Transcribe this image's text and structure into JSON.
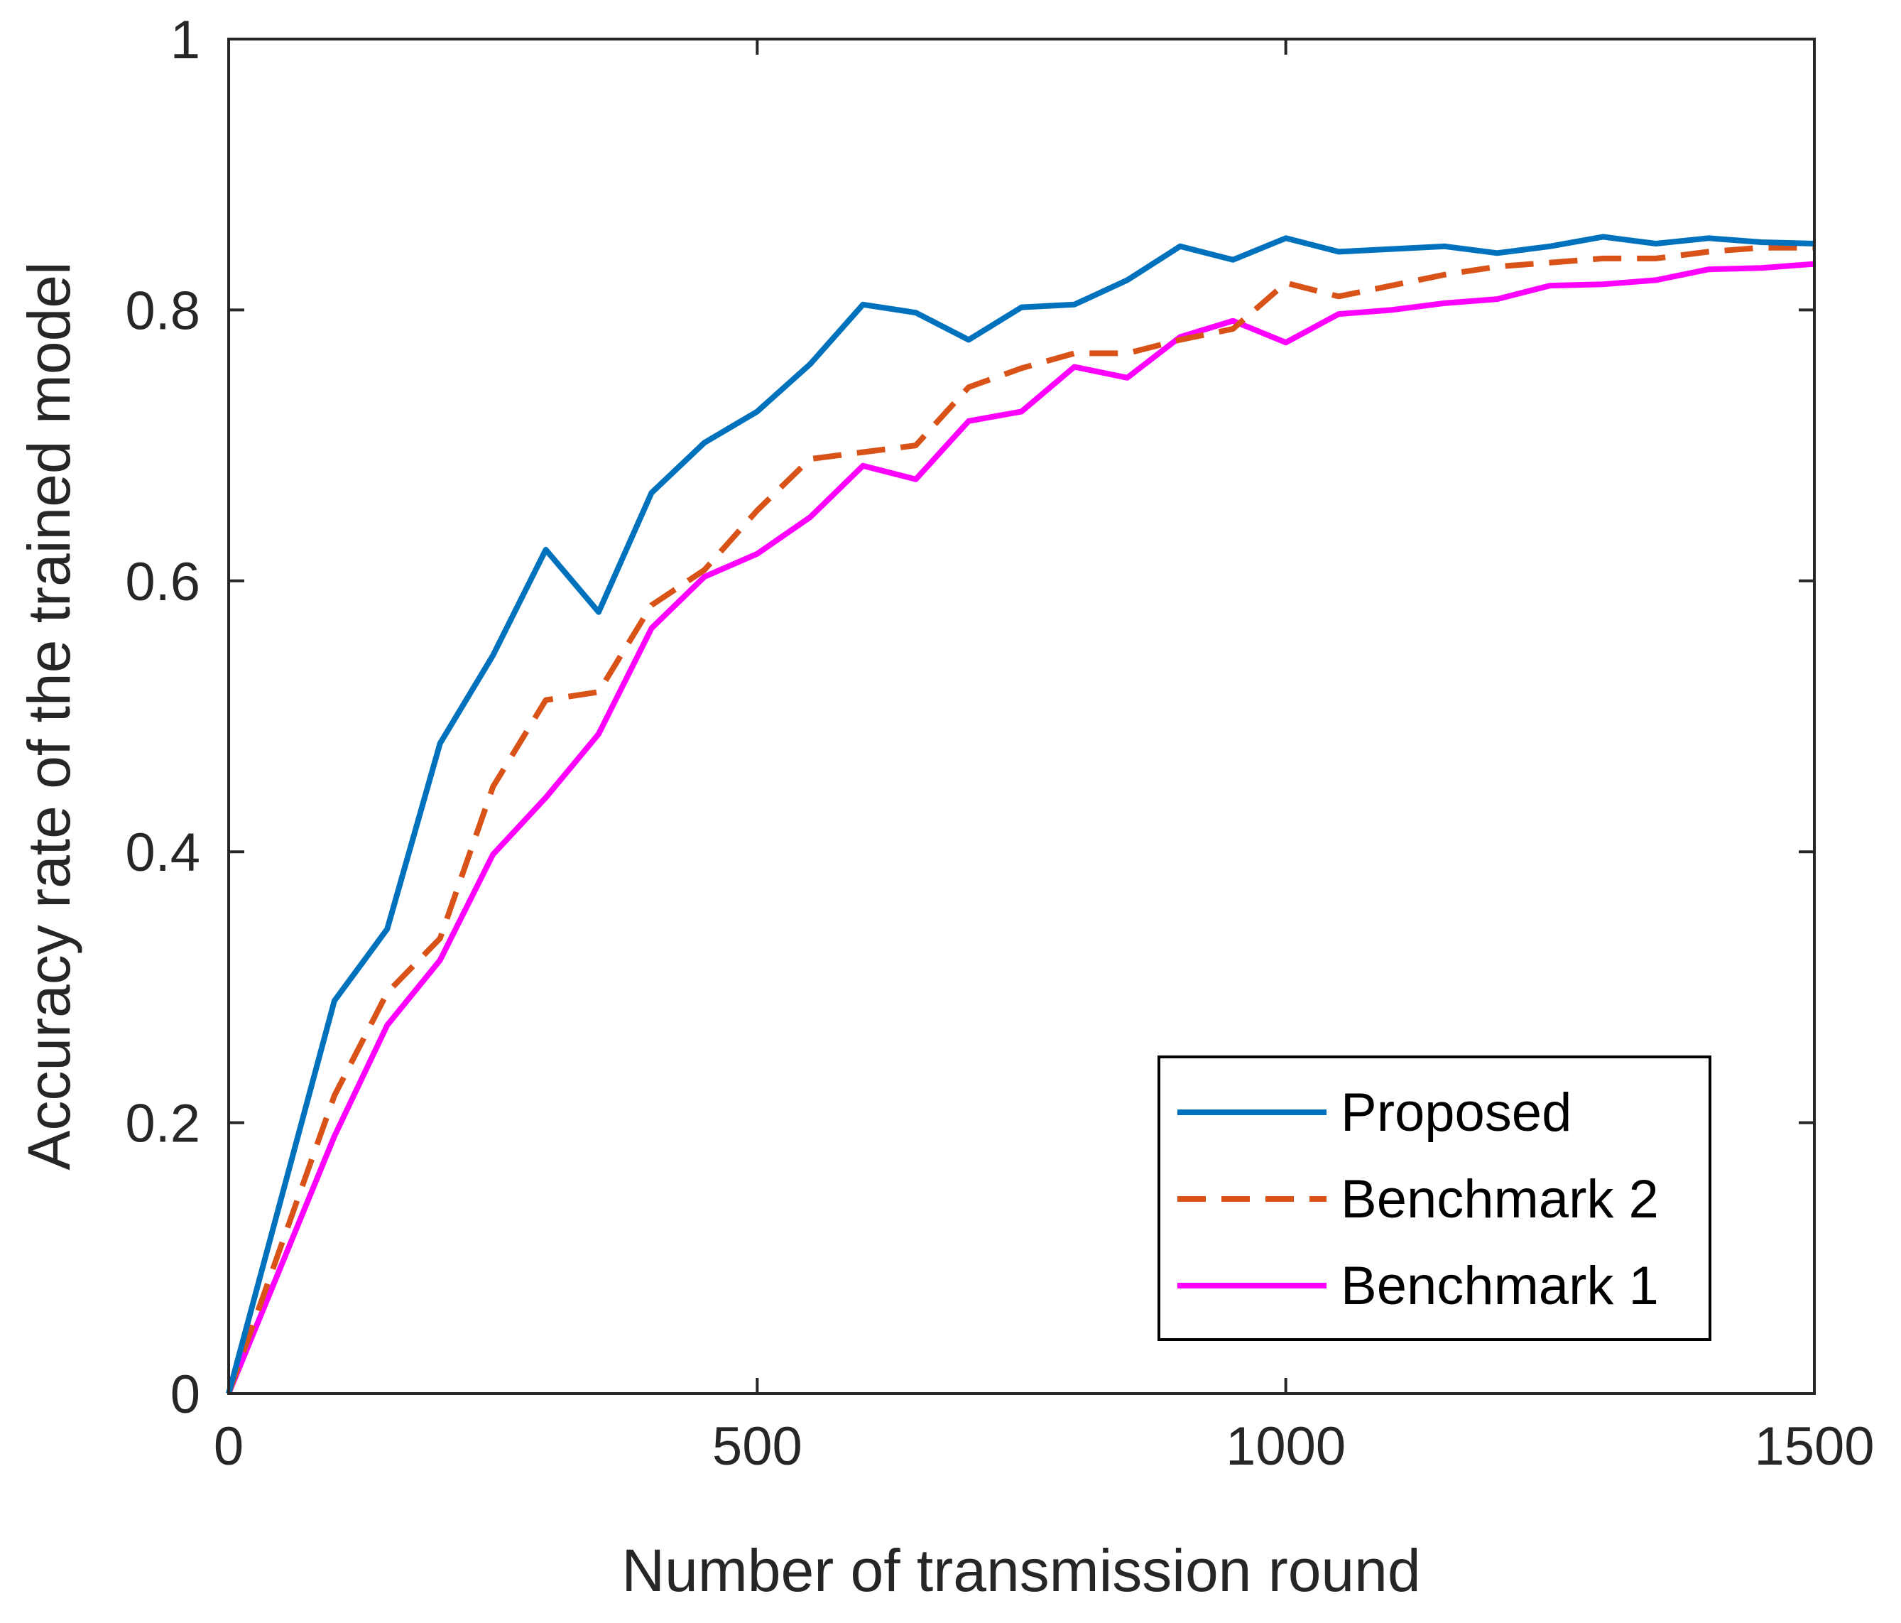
{
  "chart_data": {
    "type": "line",
    "title": "",
    "xlabel": "Number of transmission round",
    "ylabel": "Accuracy rate of the trained model",
    "xlim": [
      0,
      1500
    ],
    "ylim": [
      0,
      1
    ],
    "xticks": [
      0,
      500,
      1000,
      1500
    ],
    "yticks": [
      0,
      0.2,
      0.4,
      0.6,
      0.8,
      1
    ],
    "xtick_labels": [
      "0",
      "500",
      "1000",
      "1500"
    ],
    "ytick_labels": [
      "0",
      "0.2",
      "0.4",
      "0.6",
      "0.8",
      "1"
    ],
    "grid": false,
    "legend_position": "bottom-right",
    "series": [
      {
        "name": "Proposed",
        "color": "#0072BD",
        "style": "solid",
        "x": [
          0,
          100,
          150,
          200,
          250,
          300,
          350,
          400,
          450,
          500,
          550,
          600,
          650,
          700,
          750,
          800,
          850,
          900,
          950,
          1000,
          1050,
          1100,
          1150,
          1200,
          1250,
          1300,
          1350,
          1400,
          1450,
          1500
        ],
        "values": [
          0,
          0.29,
          0.343,
          0.48,
          0.545,
          0.623,
          0.577,
          0.665,
          0.702,
          0.725,
          0.76,
          0.804,
          0.798,
          0.778,
          0.802,
          0.804,
          0.822,
          0.847,
          0.837,
          0.853,
          0.843,
          0.845,
          0.847,
          0.842,
          0.847,
          0.854,
          0.849,
          0.853,
          0.85,
          0.849
        ]
      },
      {
        "name": "Benchmark 2",
        "color": "#D95319",
        "style": "dashed",
        "x": [
          0,
          100,
          150,
          200,
          250,
          300,
          350,
          400,
          450,
          500,
          550,
          600,
          650,
          700,
          750,
          800,
          850,
          900,
          950,
          1000,
          1050,
          1100,
          1150,
          1200,
          1250,
          1300,
          1350,
          1400,
          1450,
          1500
        ],
        "values": [
          0,
          0.22,
          0.296,
          0.336,
          0.448,
          0.512,
          0.518,
          0.582,
          0.608,
          0.652,
          0.69,
          0.695,
          0.7,
          0.743,
          0.757,
          0.768,
          0.768,
          0.778,
          0.786,
          0.82,
          0.81,
          0.818,
          0.826,
          0.832,
          0.835,
          0.838,
          0.838,
          0.843,
          0.846,
          0.846
        ]
      },
      {
        "name": "Benchmark 1",
        "color": "#FF00FF",
        "style": "solid",
        "x": [
          0,
          100,
          150,
          200,
          250,
          300,
          350,
          400,
          450,
          500,
          550,
          600,
          650,
          700,
          750,
          800,
          850,
          900,
          950,
          1000,
          1050,
          1100,
          1150,
          1200,
          1250,
          1300,
          1350,
          1400,
          1450,
          1500
        ],
        "values": [
          0,
          0.19,
          0.272,
          0.32,
          0.398,
          0.44,
          0.487,
          0.565,
          0.603,
          0.62,
          0.647,
          0.685,
          0.675,
          0.718,
          0.725,
          0.758,
          0.75,
          0.78,
          0.792,
          0.776,
          0.797,
          0.8,
          0.805,
          0.808,
          0.818,
          0.819,
          0.822,
          0.83,
          0.831,
          0.834
        ]
      }
    ]
  }
}
